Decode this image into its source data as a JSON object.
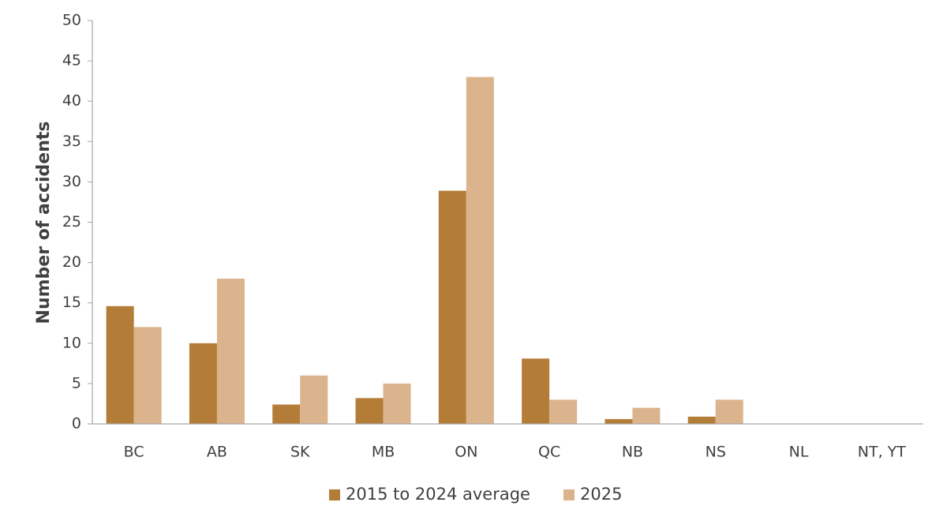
{
  "chart_data": {
    "type": "bar",
    "title": "",
    "xlabel": "",
    "ylabel": "Number of accidents",
    "ylim": [
      0,
      50
    ],
    "yticks": [
      0,
      5,
      10,
      15,
      20,
      25,
      30,
      35,
      40,
      45,
      50
    ],
    "categories": [
      "BC",
      "AB",
      "SK",
      "MB",
      "ON",
      "QC",
      "NB",
      "NS",
      "NL",
      "NT, YT"
    ],
    "series": [
      {
        "name": "2015 to 2024 average",
        "color": "#b37d37",
        "values": [
          14.6,
          10.0,
          2.4,
          3.2,
          28.9,
          8.1,
          0.6,
          0.9,
          0,
          0
        ]
      },
      {
        "name": "2025",
        "color": "#dbb38d",
        "values": [
          12,
          18,
          6,
          5,
          43,
          3,
          2,
          3,
          0,
          0
        ]
      }
    ],
    "grid": false,
    "legend_position": "bottom"
  }
}
